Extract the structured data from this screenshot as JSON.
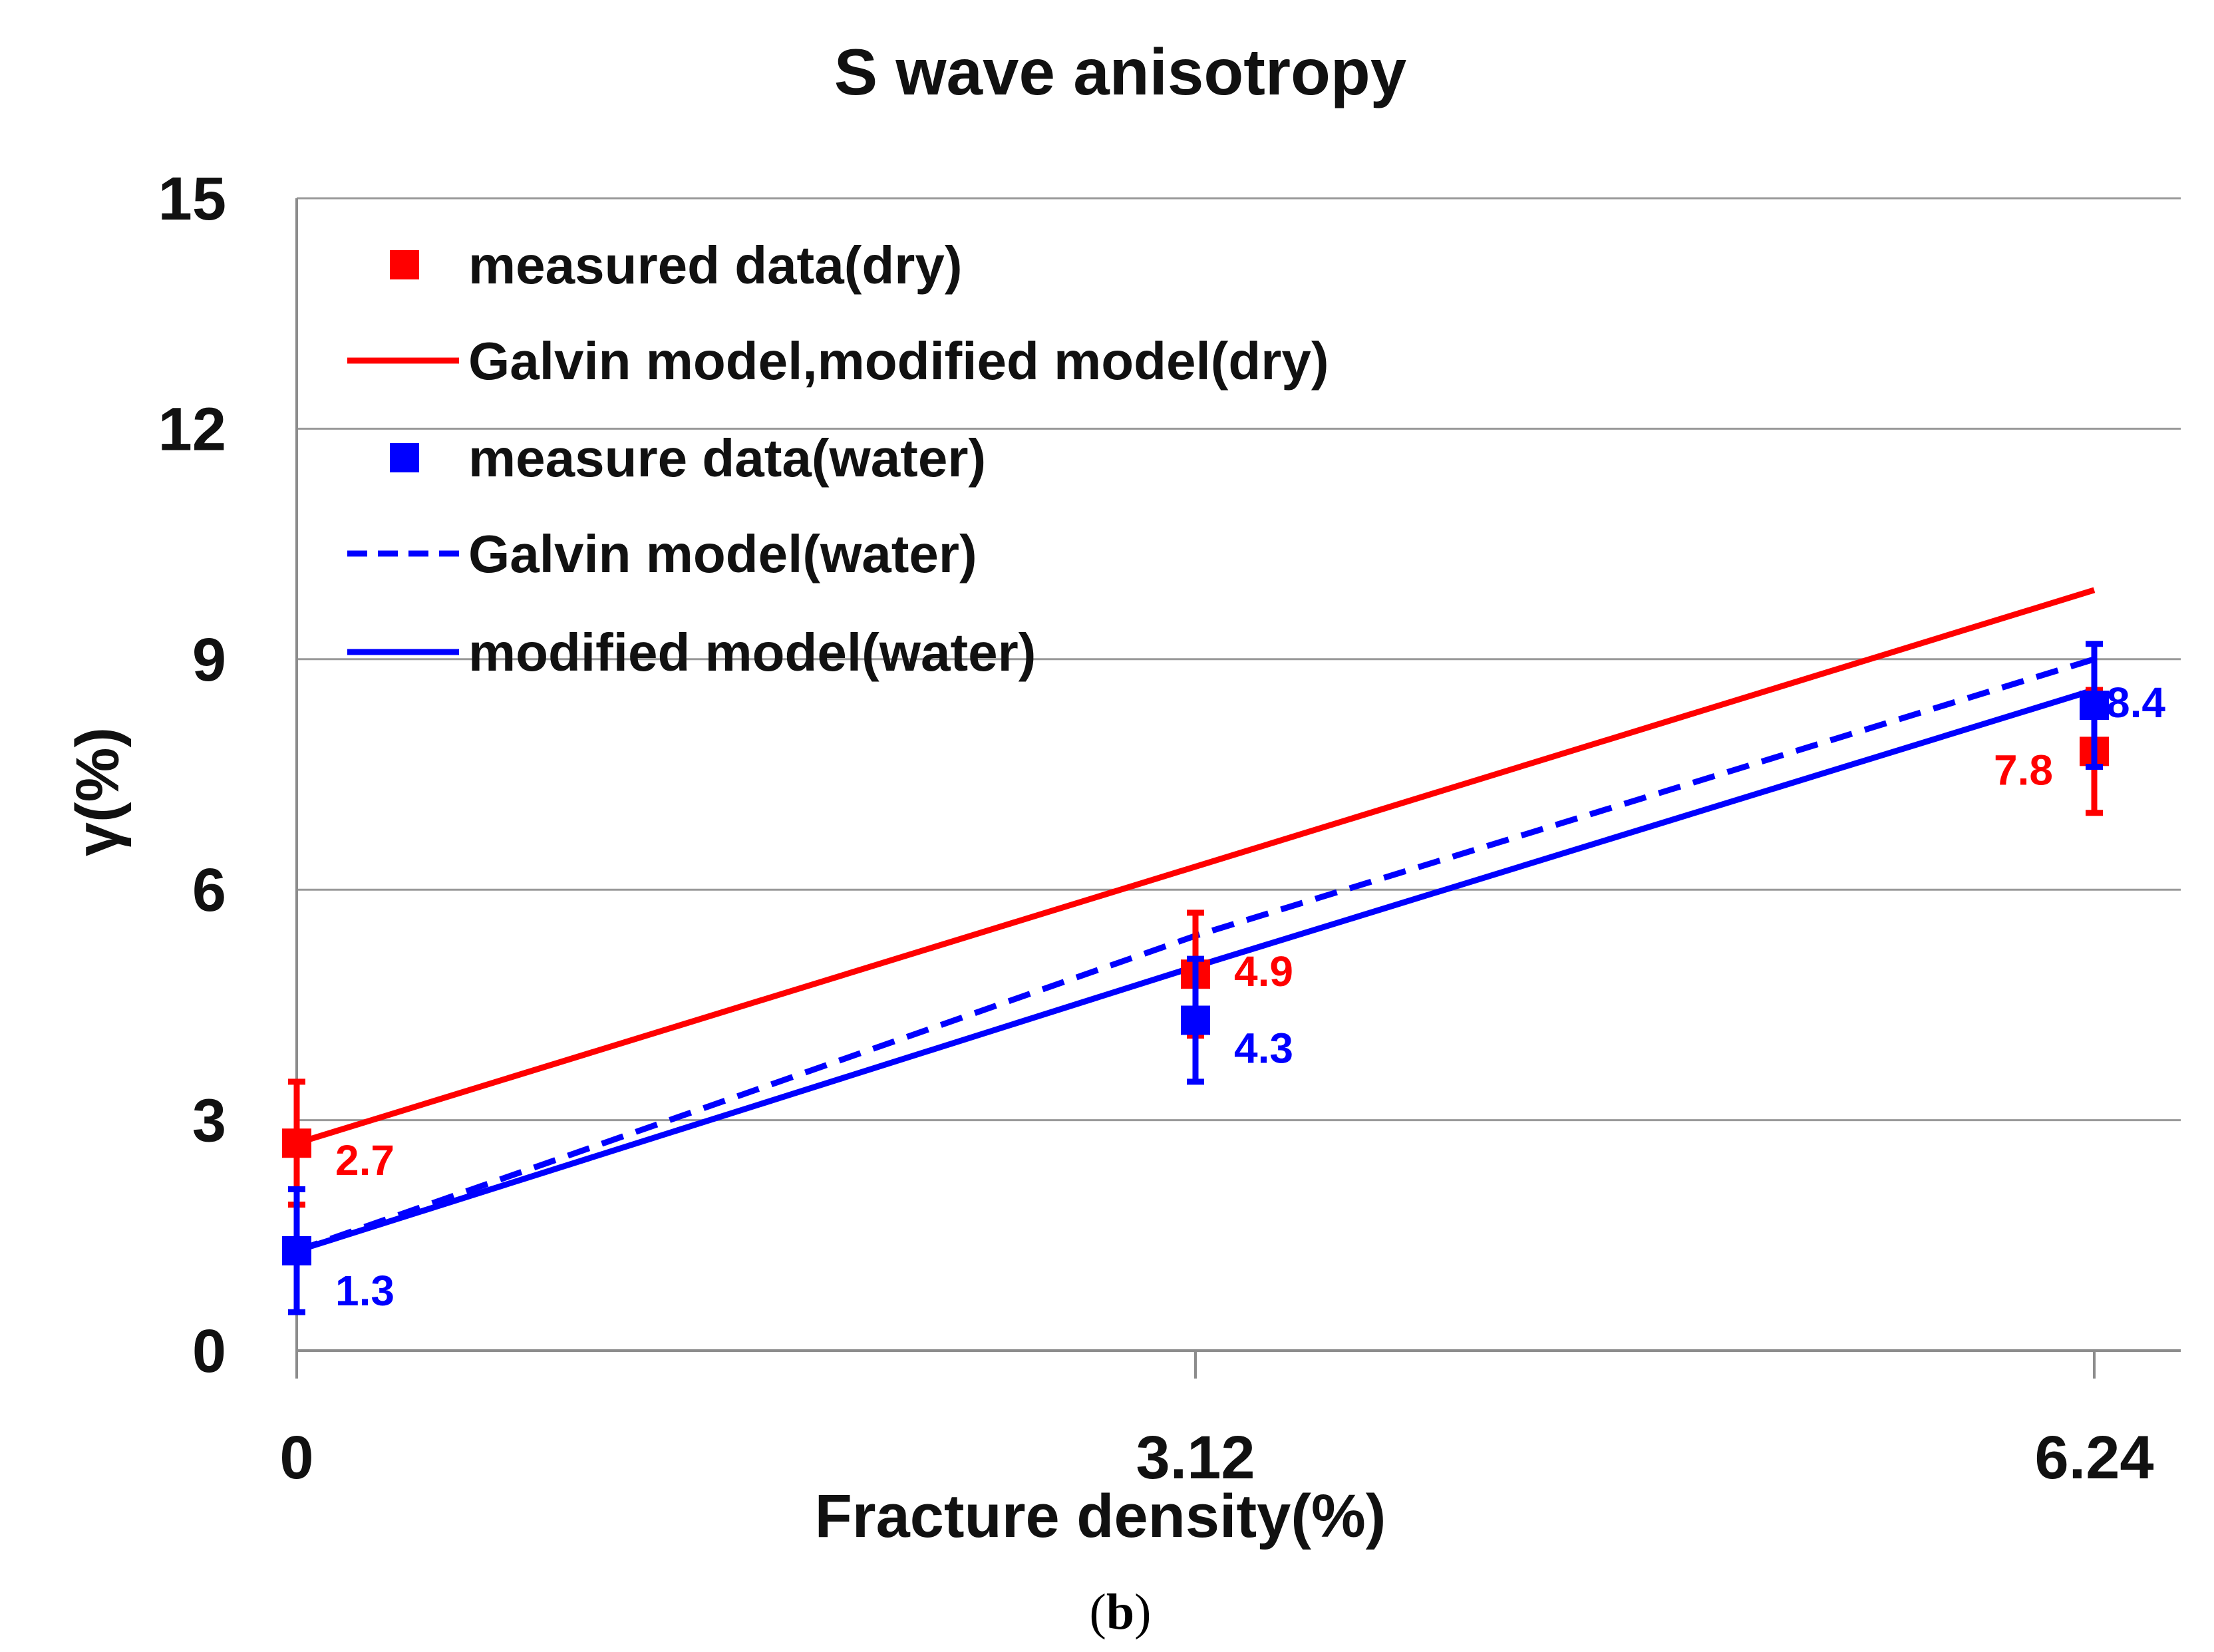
{
  "chart_data": {
    "type": "line",
    "title": "S wave anisotropy",
    "xlabel": "Fracture density(%)",
    "ylabel": "γ(%)",
    "caption_paren_open": "(",
    "caption_letter": "b",
    "caption_paren_close": ")",
    "x": [
      0,
      3.12,
      6.24
    ],
    "x_tick_labels": [
      "0",
      "3.12",
      "6.24"
    ],
    "ylim": [
      0,
      15
    ],
    "y_ticks": [
      0,
      3,
      6,
      9,
      12,
      15
    ],
    "y_tick_labels": [
      "0",
      "3",
      "6",
      "9",
      "12",
      "15"
    ],
    "grid": true,
    "legend_position": "top-left",
    "series": [
      {
        "name": "measured data(dry)",
        "kind": "markers",
        "color": "#ff0000",
        "values": [
          2.7,
          4.9,
          7.8
        ],
        "error": [
          0.8,
          0.8,
          0.8
        ],
        "labels": [
          "2.7",
          "4.9",
          "7.8"
        ]
      },
      {
        "name": "Galvin model,modified model(dry)",
        "kind": "line",
        "style": "solid",
        "color": "#ff0000",
        "values": [
          2.7,
          6.3,
          9.9
        ]
      },
      {
        "name": "measure data(water)",
        "kind": "markers",
        "color": "#0000ff",
        "values": [
          1.3,
          4.3,
          8.4
        ],
        "error": [
          0.8,
          0.8,
          0.8
        ],
        "labels": [
          "1.3",
          "4.3",
          "8.4"
        ]
      },
      {
        "name": "Galvin model(water)",
        "kind": "line",
        "style": "dashed",
        "color": "#0000ff",
        "values": [
          1.3,
          5.4,
          9.0
        ]
      },
      {
        "name": "modified model(water)",
        "kind": "line",
        "style": "solid",
        "color": "#0000ff",
        "values": [
          1.3,
          5.0,
          8.6
        ]
      }
    ]
  }
}
